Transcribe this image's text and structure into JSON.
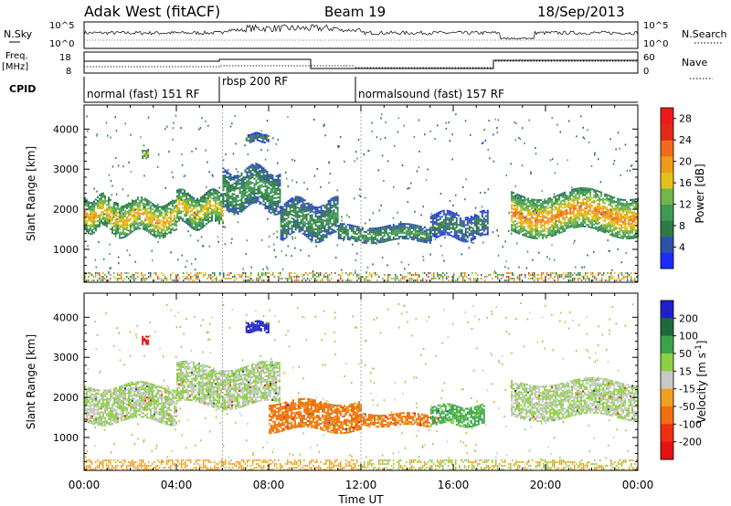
{
  "header": {
    "title": "Adak West (fitACF)",
    "beam": "Beam 19",
    "date": "18/Sep/2013"
  },
  "top_panels": {
    "nsky_label": "N.Sky",
    "nsky_ticks": [
      "10^5",
      "10^0"
    ],
    "nsearch_label": "N.Search",
    "nsearch_ticks": [
      "10^5",
      "10^0"
    ],
    "freq_label_1": "Freq.",
    "freq_label_2": "[MHz]",
    "freq_ticks": [
      "18",
      "8"
    ],
    "nave_label": "Nave",
    "nave_ticks": [
      "60",
      "0"
    ],
    "cpid_label": "CPID",
    "cpid_segments": [
      {
        "label": "normal (fast) 151 RF",
        "start_h": 0,
        "end_h": 6
      },
      {
        "label": "rbsp 200 RF",
        "start_h": 6,
        "end_h": 12
      },
      {
        "label": "normalsound (fast) 157 RF",
        "start_h": 12,
        "end_h": 24
      }
    ]
  },
  "chart_data": [
    {
      "type": "heatmap",
      "name": "power",
      "ylabel": "Slant Range [km]",
      "xlabel": "",
      "xlim": [
        0,
        24
      ],
      "ylim": [
        180,
        4600
      ],
      "yticks": [
        1000,
        2000,
        3000,
        4000
      ],
      "colorbar": {
        "label": "Power [dB]",
        "ticks": [
          "4",
          "8",
          "12",
          "16",
          "20",
          "24",
          "28"
        ],
        "range": [
          0,
          30
        ],
        "colors": [
          "#1a2cff",
          "#2d52a8",
          "#2f7a45",
          "#3f9a55",
          "#74b54a",
          "#e2c21a",
          "#f09a1a",
          "#f26a1c",
          "#e22a18",
          "#ee1a1a"
        ]
      },
      "echo_regions": [
        {
          "t0": 0.0,
          "t1": 1.5,
          "r0": 1500,
          "r1": 2300,
          "level": 18
        },
        {
          "t0": 1.5,
          "t1": 4.0,
          "r0": 1400,
          "r1": 2200,
          "level": 18
        },
        {
          "t0": 4.0,
          "t1": 6.0,
          "r0": 1600,
          "r1": 2400,
          "level": 17
        },
        {
          "t0": 6.0,
          "t1": 8.5,
          "r0": 2000,
          "r1": 3000,
          "level": 9
        },
        {
          "t0": 7.0,
          "t1": 8.0,
          "r0": 3700,
          "r1": 3900,
          "level": 6
        },
        {
          "t0": 2.5,
          "t1": 2.8,
          "r0": 3300,
          "r1": 3500,
          "level": 16
        },
        {
          "t0": 8.5,
          "t1": 11.0,
          "r0": 1300,
          "r1": 2200,
          "level": 8
        },
        {
          "t0": 11.0,
          "t1": 15.0,
          "r0": 1200,
          "r1": 1600,
          "level": 9
        },
        {
          "t0": 15.0,
          "t1": 17.5,
          "r0": 1300,
          "r1": 1900,
          "level": 6
        },
        {
          "t0": 18.5,
          "t1": 24.0,
          "r0": 1400,
          "r1": 2400,
          "level": 20
        }
      ]
    },
    {
      "type": "heatmap",
      "name": "velocity",
      "ylabel": "Slant Range [km]",
      "xlabel": "Time UT",
      "xlim": [
        0,
        24
      ],
      "ylim": [
        180,
        4600
      ],
      "xticks": [
        "00:00",
        "04:00",
        "08:00",
        "12:00",
        "16:00",
        "20:00",
        "00:00"
      ],
      "yticks": [
        1000,
        2000,
        3000,
        4000
      ],
      "colorbar": {
        "label": "Velocity [m s^-1]",
        "ticks": [
          "200",
          "100",
          "50",
          "15",
          "-15",
          "-50",
          "-100",
          "-200"
        ],
        "colors": [
          "#2020c8",
          "#1f6a3a",
          "#3aa548",
          "#8cd044",
          "#c8c8c8",
          "#f0a020",
          "#f07010",
          "#f03010",
          "#e81010"
        ]
      },
      "echo_regions": [
        {
          "t0": 0.0,
          "t1": 4.0,
          "r0": 1400,
          "r1": 2300,
          "velocity": 0
        },
        {
          "t0": 4.0,
          "t1": 8.5,
          "r0": 1800,
          "r1": 2800,
          "velocity": 0
        },
        {
          "t0": 7.0,
          "t1": 8.0,
          "r0": 3650,
          "r1": 3900,
          "velocity": 180
        },
        {
          "t0": 2.5,
          "t1": 2.8,
          "r0": 3350,
          "r1": 3550,
          "velocity": -180
        },
        {
          "t0": 8.0,
          "t1": 12.0,
          "r0": 1200,
          "r1": 1900,
          "velocity": -40
        },
        {
          "t0": 12.0,
          "t1": 15.0,
          "r0": 1300,
          "r1": 1600,
          "velocity": -40
        },
        {
          "t0": 15.0,
          "t1": 17.3,
          "r0": 1300,
          "r1": 1800,
          "velocity": 40
        },
        {
          "t0": 18.5,
          "t1": 24.0,
          "r0": 1500,
          "r1": 2400,
          "velocity": 0
        }
      ]
    }
  ]
}
